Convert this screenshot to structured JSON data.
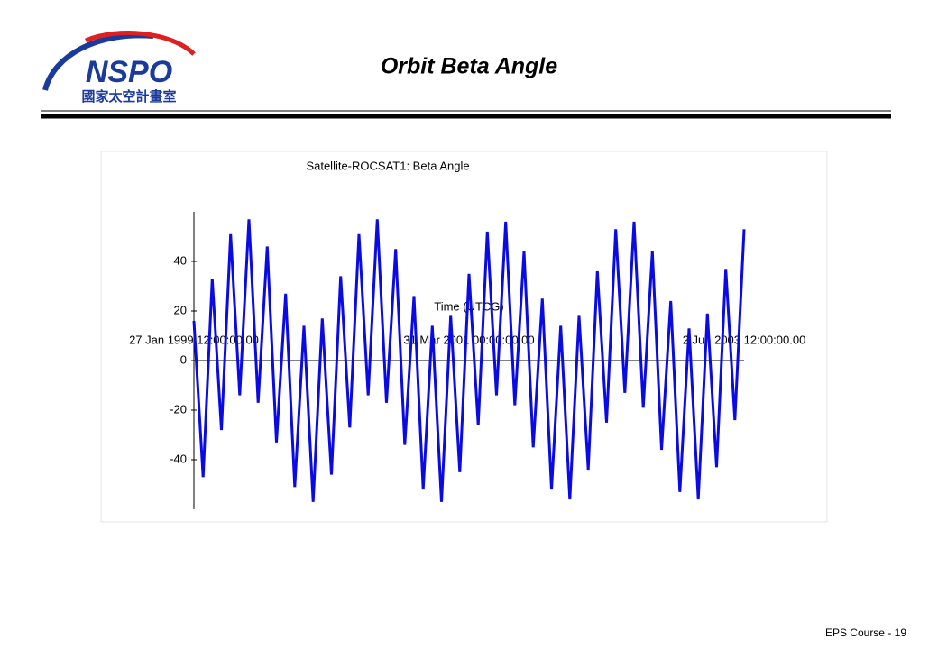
{
  "logo": {
    "name": "NSPO",
    "subtitle": "國家太空計畫室"
  },
  "header": {
    "title": "Orbit Beta Angle"
  },
  "footer": "EPS Course - 19",
  "chart_data": {
    "type": "line",
    "title": "Satellite-ROCSAT1: Beta Angle",
    "x_label": "Time (UTCG)",
    "categories": [
      "27 Jan 1999 12:00:00.00",
      null,
      null,
      null,
      null,
      null,
      null,
      null,
      null,
      null,
      null,
      null,
      null,
      null,
      null,
      null,
      null,
      null,
      null,
      null,
      null,
      null,
      null,
      null,
      null,
      null,
      null,
      null,
      null,
      null,
      "31 Mar 2001 00:00:00.00",
      null,
      null,
      null,
      null,
      null,
      null,
      null,
      null,
      null,
      null,
      null,
      null,
      null,
      null,
      null,
      null,
      null,
      null,
      null,
      null,
      null,
      null,
      null,
      null,
      null,
      null,
      null,
      null,
      null,
      "2 Jun 2003 12:00:00.00"
    ],
    "series": [
      {
        "color": "#0a0ae6",
        "values": [
          16,
          -47,
          33,
          -28,
          51,
          -14,
          57,
          -17,
          46,
          -33,
          27,
          -51,
          14,
          -57,
          17,
          -46,
          34,
          -27,
          51,
          -14,
          57,
          -17,
          45,
          -34,
          26,
          -52,
          14,
          -57,
          18,
          -45,
          35,
          -26,
          52,
          -14,
          56,
          -18,
          44,
          -35,
          25,
          -52,
          14,
          -56,
          18,
          -44,
          36,
          -25,
          53,
          -13,
          56,
          -19,
          44,
          -36,
          24,
          -53,
          13,
          -56,
          19,
          -43,
          37,
          -24,
          53
        ]
      }
    ],
    "ylim": [
      -60,
      60
    ],
    "yticks": [
      -40,
      -20,
      0,
      20,
      40
    ]
  }
}
